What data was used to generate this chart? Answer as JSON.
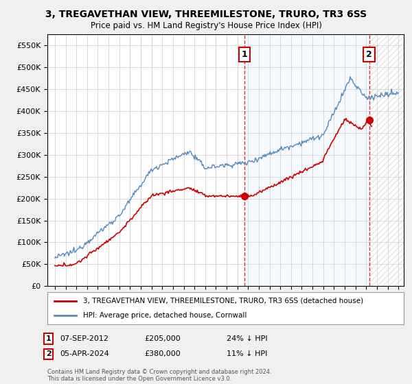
{
  "title": "3, TREGAVETHAN VIEW, THREEMILESTONE, TRURO, TR3 6SS",
  "subtitle": "Price paid vs. HM Land Registry's House Price Index (HPI)",
  "ylim": [
    0,
    575000
  ],
  "yticks": [
    0,
    50000,
    100000,
    150000,
    200000,
    250000,
    300000,
    350000,
    400000,
    450000,
    500000,
    550000
  ],
  "sale1_x": 2012.67,
  "sale1_price": 205000,
  "sale1_date": "07-SEP-2012",
  "sale1_hpi_diff": "24% ↓ HPI",
  "sale2_x": 2024.27,
  "sale2_price": 380000,
  "sale2_date": "05-APR-2024",
  "sale2_hpi_diff": "11% ↓ HPI",
  "red_line_label": "3, TREGAVETHAN VIEW, THREEMILESTONE, TRURO, TR3 6SS (detached house)",
  "blue_line_label": "HPI: Average price, detached house, Cornwall",
  "footer": "Contains HM Land Registry data © Crown copyright and database right 2024.\nThis data is licensed under the Open Government Licence v3.0.",
  "bg_color": "#f0f0f0",
  "plot_bg_color": "#ffffff",
  "red_color": "#cc0000",
  "blue_color": "#5588bb",
  "shade_color": "#ddeeff",
  "hatch_color": "#cccccc"
}
